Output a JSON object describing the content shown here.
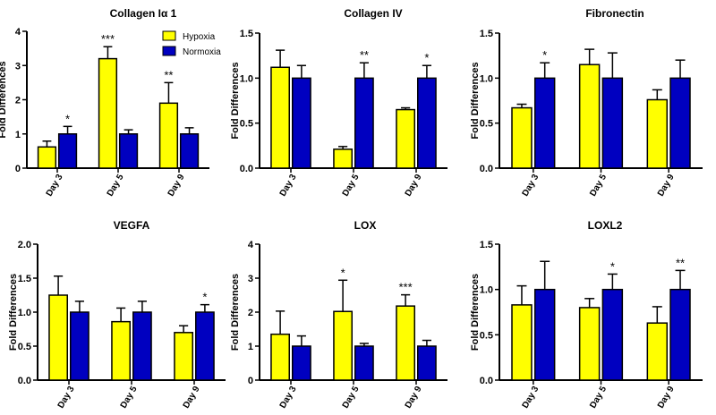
{
  "colors": {
    "hypoxia": "#ffff00",
    "normoxia": "#0000c0",
    "axis": "#000000"
  },
  "legend": {
    "hypoxia_label": "Hypoxia",
    "normoxia_label": "Normoxia"
  },
  "chart_data": [
    {
      "type": "bar",
      "title": "Collagen Iα 1",
      "ylabel": "Fold Differences",
      "categories": [
        "Day 3",
        "Day 5",
        "Day 9"
      ],
      "ylim": [
        0,
        4
      ],
      "yticks": [
        "0",
        "1",
        "2",
        "3",
        "4"
      ],
      "series": [
        {
          "name": "Hypoxia",
          "values": [
            0.62,
            3.2,
            1.9
          ],
          "errors": [
            0.17,
            0.35,
            0.6
          ]
        },
        {
          "name": "Normoxia",
          "values": [
            1.0,
            1.0,
            1.0
          ],
          "errors": [
            0.22,
            0.12,
            0.18
          ]
        }
      ],
      "significance": [
        {
          "category": 0,
          "series": 1,
          "label": "*"
        },
        {
          "category": 1,
          "series": 0,
          "label": "***"
        },
        {
          "category": 2,
          "series": 0,
          "label": "**"
        }
      ]
    },
    {
      "type": "bar",
      "title": "Collagen IV",
      "ylabel": "Fold Differences",
      "categories": [
        "Day 3",
        "Day 5",
        "Day 9"
      ],
      "ylim": [
        0,
        1.5
      ],
      "yticks": [
        "0.0",
        "0.5",
        "1.0",
        "1.5"
      ],
      "series": [
        {
          "name": "Hypoxia",
          "values": [
            1.12,
            0.21,
            0.65
          ],
          "errors": [
            0.19,
            0.03,
            0.02
          ]
        },
        {
          "name": "Normoxia",
          "values": [
            1.0,
            1.0,
            1.0
          ],
          "errors": [
            0.14,
            0.17,
            0.14
          ]
        }
      ],
      "significance": [
        {
          "category": 1,
          "series": 1,
          "label": "**"
        },
        {
          "category": 2,
          "series": 1,
          "label": "*"
        }
      ]
    },
    {
      "type": "bar",
      "title": "Fibronectin",
      "ylabel": "Fold Differences",
      "categories": [
        "Day 3",
        "Day 5",
        "Day 9"
      ],
      "ylim": [
        0,
        1.5
      ],
      "yticks": [
        "0.0",
        "0.5",
        "1.0",
        "1.5"
      ],
      "series": [
        {
          "name": "Hypoxia",
          "values": [
            0.67,
            1.15,
            0.76
          ],
          "errors": [
            0.04,
            0.17,
            0.11
          ]
        },
        {
          "name": "Normoxia",
          "values": [
            1.0,
            1.0,
            1.0
          ],
          "errors": [
            0.17,
            0.28,
            0.2
          ]
        }
      ],
      "significance": [
        {
          "category": 0,
          "series": 1,
          "label": "*"
        }
      ]
    },
    {
      "type": "bar",
      "title": "VEGFA",
      "ylabel": "Fold Differences",
      "categories": [
        "Day 3",
        "Day 5",
        "Day 9"
      ],
      "ylim": [
        0,
        2.0
      ],
      "yticks": [
        "0.0",
        "0.5",
        "1.0",
        "1.5",
        "2.0"
      ],
      "series": [
        {
          "name": "Hypoxia",
          "values": [
            1.25,
            0.86,
            0.7
          ],
          "errors": [
            0.28,
            0.2,
            0.1
          ]
        },
        {
          "name": "Normoxia",
          "values": [
            1.0,
            1.0,
            1.0
          ],
          "errors": [
            0.16,
            0.16,
            0.11
          ]
        }
      ],
      "significance": [
        {
          "category": 2,
          "series": 1,
          "label": "*"
        }
      ]
    },
    {
      "type": "bar",
      "title": "LOX",
      "ylabel": "Fold Differences",
      "categories": [
        "Day 3",
        "Day 5",
        "Day 9"
      ],
      "ylim": [
        0,
        4
      ],
      "yticks": [
        "0",
        "1",
        "2",
        "3",
        "4"
      ],
      "series": [
        {
          "name": "Hypoxia",
          "values": [
            1.35,
            2.02,
            2.18
          ],
          "errors": [
            0.68,
            0.92,
            0.33
          ]
        },
        {
          "name": "Normoxia",
          "values": [
            1.0,
            1.0,
            1.0
          ],
          "errors": [
            0.3,
            0.08,
            0.17
          ]
        }
      ],
      "significance": [
        {
          "category": 1,
          "series": 0,
          "label": "*"
        },
        {
          "category": 2,
          "series": 0,
          "label": "***"
        }
      ]
    },
    {
      "type": "bar",
      "title": "LOXL2",
      "ylabel": "Fold Differences",
      "categories": [
        "Day 3",
        "Day 5",
        "Day 9"
      ],
      "ylim": [
        0,
        1.5
      ],
      "yticks": [
        "0.0",
        "0.5",
        "1.0",
        "1.5"
      ],
      "series": [
        {
          "name": "Hypoxia",
          "values": [
            0.83,
            0.8,
            0.63
          ],
          "errors": [
            0.21,
            0.1,
            0.18
          ]
        },
        {
          "name": "Normoxia",
          "values": [
            1.0,
            1.0,
            1.0
          ],
          "errors": [
            0.31,
            0.17,
            0.21
          ]
        }
      ],
      "significance": [
        {
          "category": 1,
          "series": 1,
          "label": "*"
        },
        {
          "category": 2,
          "series": 1,
          "label": "**"
        }
      ]
    }
  ]
}
